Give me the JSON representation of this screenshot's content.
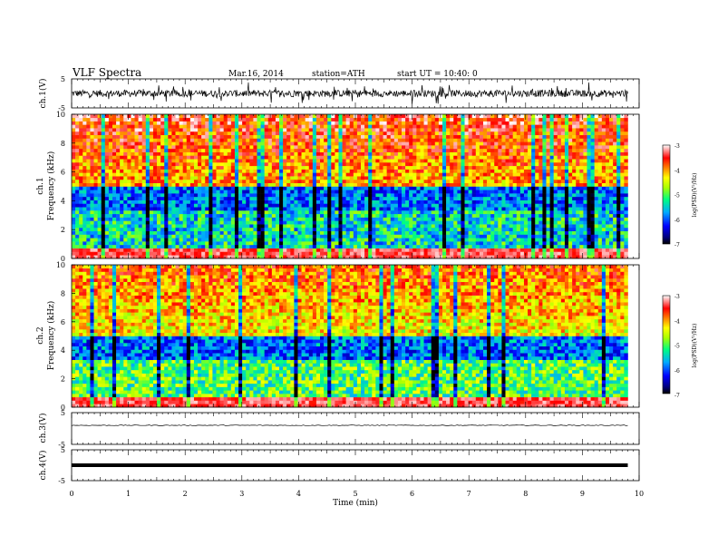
{
  "header": {
    "title": "VLF  Spectra",
    "date": "Mar.16, 2014",
    "station": "station=ATH",
    "start": "start  UT  =   10:40: 0"
  },
  "chart_data": [
    {
      "type": "line",
      "name": "ch1-waveform",
      "ylabel": "ch.1(V)",
      "ylim": [
        -5,
        5
      ],
      "yticks": [
        "5",
        "-5"
      ],
      "xlim": [
        0,
        10
      ],
      "color": "#000000",
      "baseline": 0.0,
      "noise_amplitude": 1.2,
      "spike_amplitude": 3.0
    },
    {
      "type": "heatmap",
      "name": "ch1-spectrogram",
      "ylabel_channel": "ch.1",
      "ylabel": "Frequency  (kHz)",
      "ylim": [
        0,
        10
      ],
      "yticks": [
        "0",
        "2",
        "4",
        "6",
        "8",
        "10"
      ],
      "xlim": [
        0,
        9.8
      ],
      "color_range": [
        -7,
        -3
      ],
      "colorbar_label": "log(PSD)(V²/Hz)",
      "colorbar_ticks": [
        "-3",
        "-4",
        "-5",
        "-6",
        "-7"
      ],
      "high_freq_level": -4.1,
      "low_freq_level": -5.4
    },
    {
      "type": "heatmap",
      "name": "ch2-spectrogram",
      "ylabel_channel": "ch.2",
      "ylabel": "Frequency  (kHz)",
      "ylim": [
        0,
        10
      ],
      "yticks": [
        "0",
        "2",
        "4",
        "6",
        "8",
        "10"
      ],
      "xlim": [
        0,
        9.8
      ],
      "color_range": [
        -7,
        -3
      ],
      "colorbar_label": "log(PSD)(V²/Hz)",
      "colorbar_ticks": [
        "-3",
        "-4",
        "-5",
        "-6",
        "-7"
      ],
      "high_freq_level": -4.4,
      "low_freq_level": -5.0
    },
    {
      "type": "line",
      "name": "ch3-waveform",
      "ylabel": "ch.3(V)",
      "ylim": [
        -5,
        5
      ],
      "yticks": [
        "5",
        "-5"
      ],
      "xlim": [
        0,
        10
      ],
      "color": "#000000",
      "baseline": 1.0,
      "noise_amplitude": 0.12,
      "spike_amplitude": 0.0
    },
    {
      "type": "line",
      "name": "ch4-waveform",
      "ylabel": "ch.4(V)",
      "ylim": [
        -5,
        5
      ],
      "yticks": [
        "5",
        "-5"
      ],
      "xlim": [
        0,
        10
      ],
      "color": "#000000",
      "baseline": 0.0,
      "noise_amplitude": 0.0,
      "spike_amplitude": 0.0
    }
  ],
  "x_axis": {
    "label": "Time  (min)",
    "ticks": [
      "0",
      "1",
      "2",
      "3",
      "4",
      "5",
      "6",
      "7",
      "8",
      "9",
      "10"
    ],
    "xlim": [
      0,
      10
    ]
  }
}
